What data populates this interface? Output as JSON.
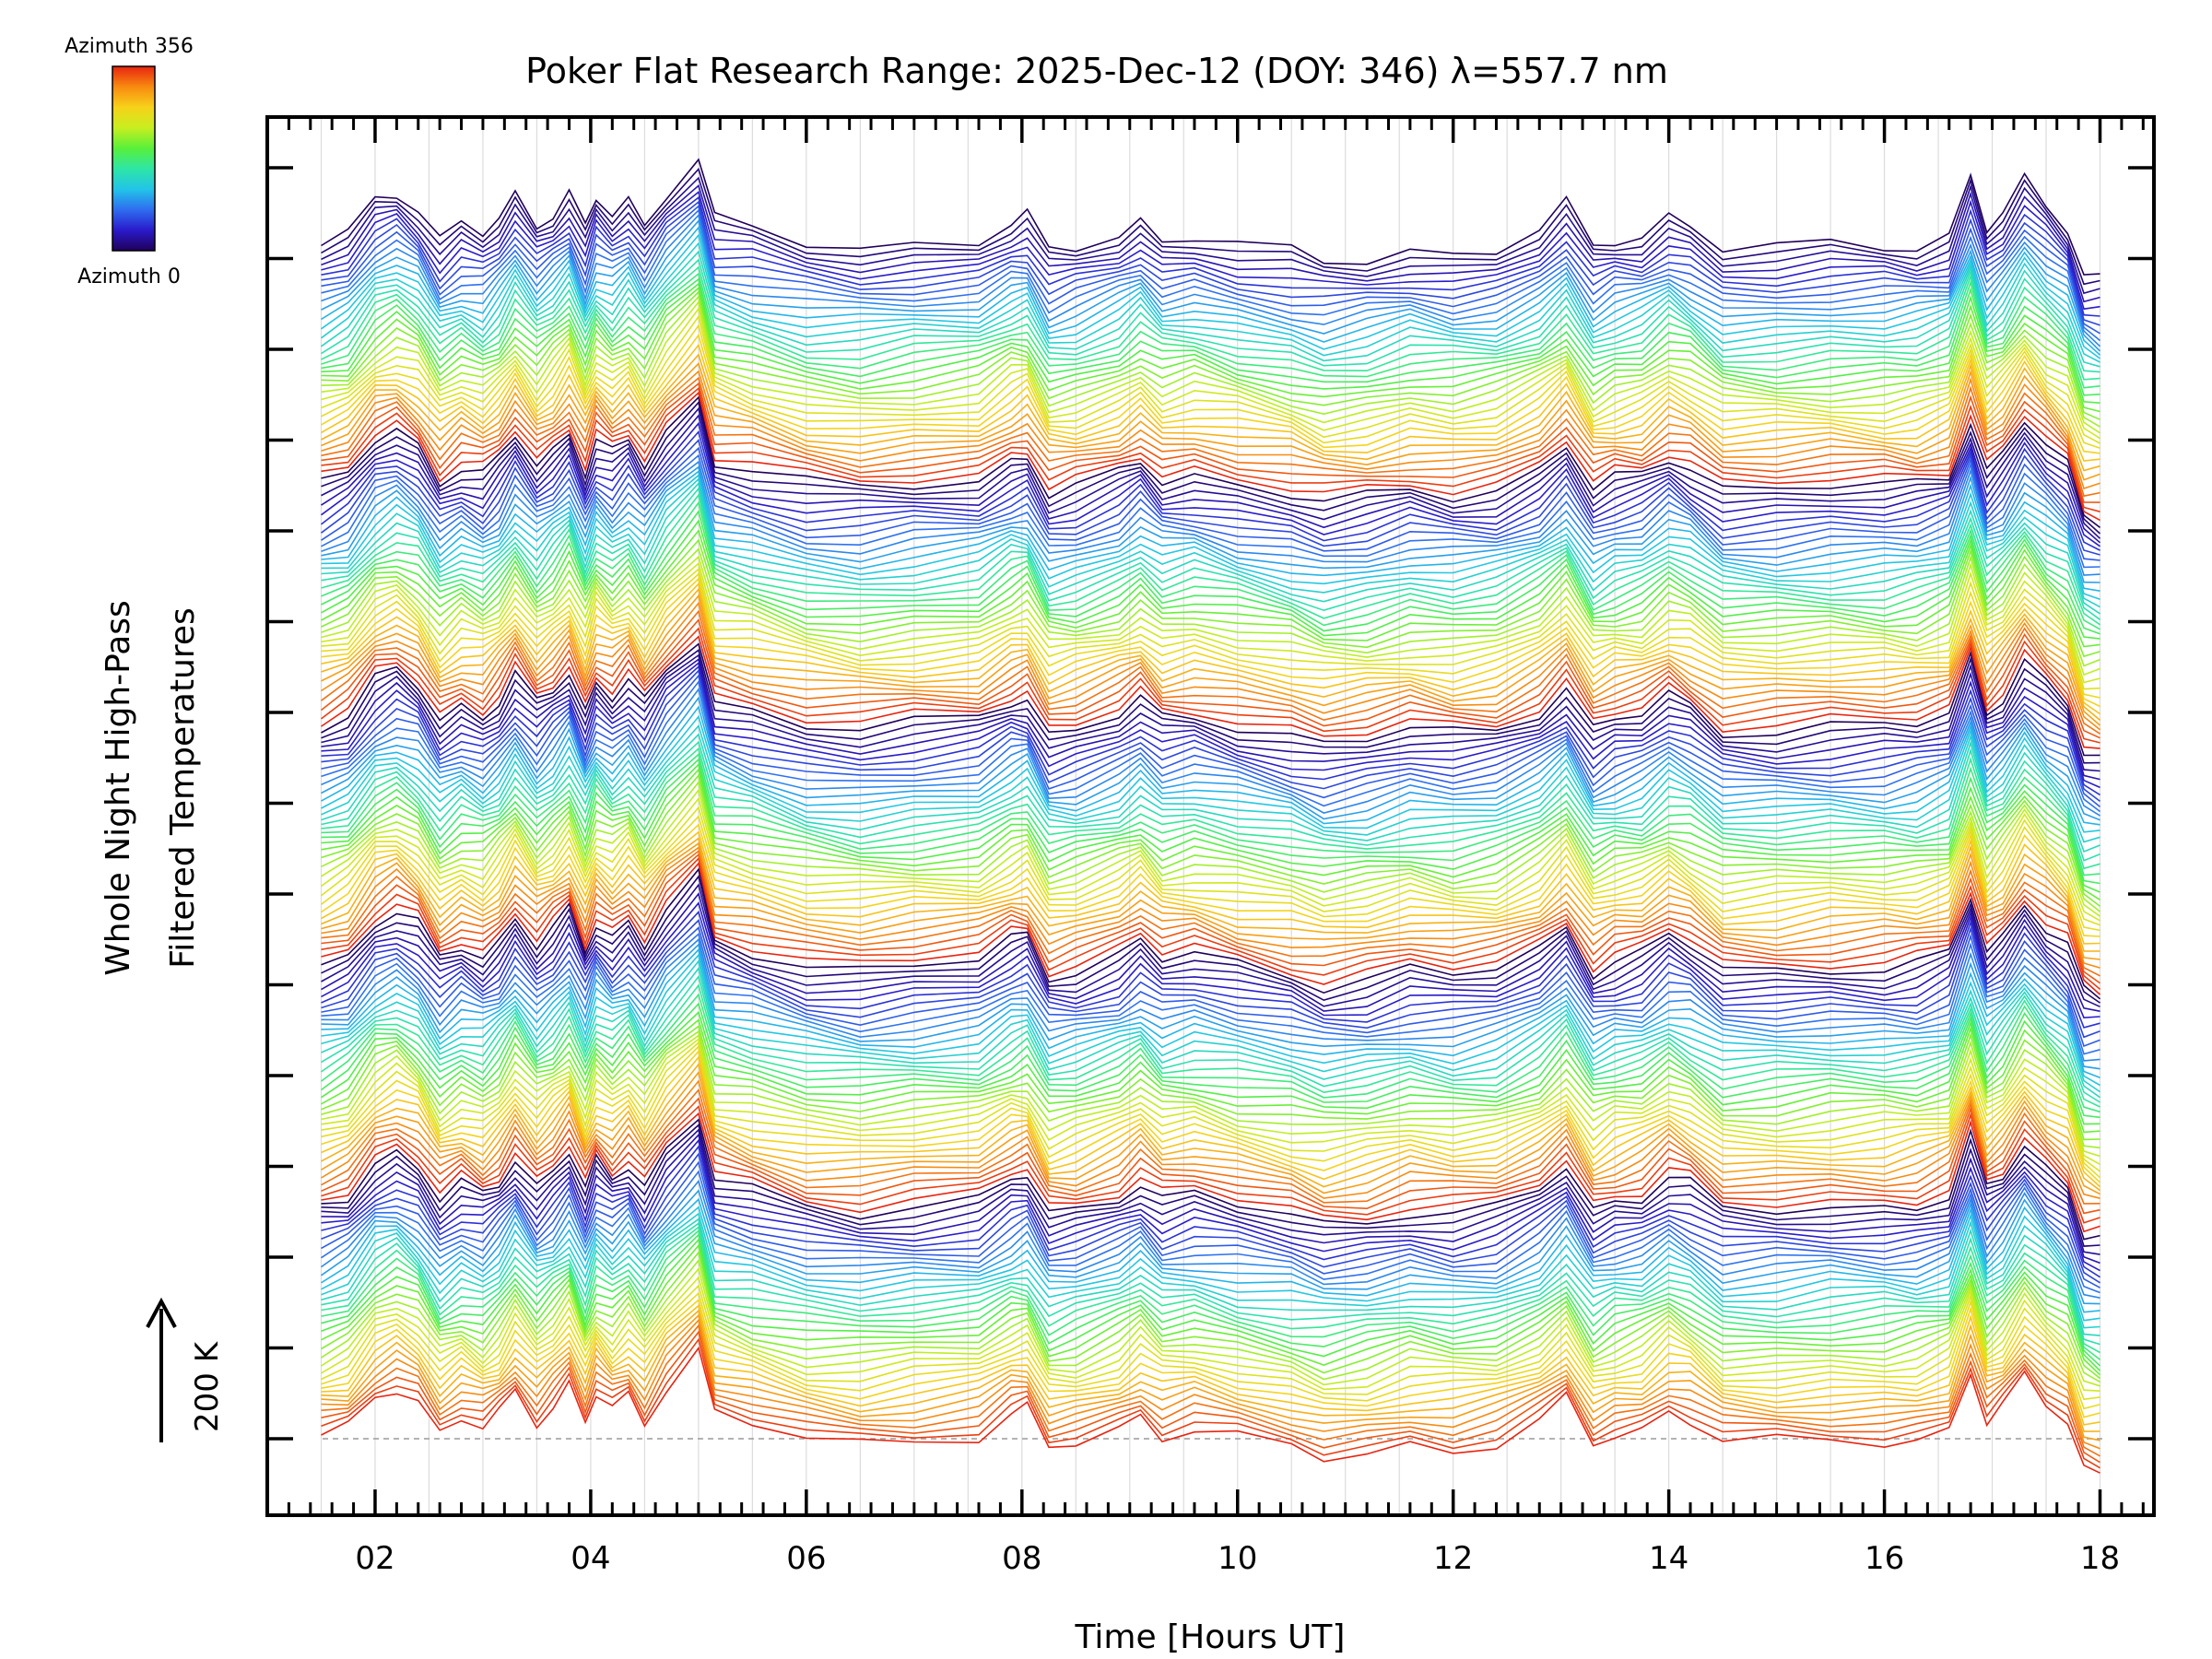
{
  "chart_data": {
    "type": "line",
    "title": "Poker Flat Research Range: 2025-Dec-12 (DOY: 346) λ=557.7 nm",
    "xlabel": "Time [Hours UT]",
    "ylabel_line1": "Whole Night High-Pass",
    "ylabel_line2": "Filtered Temperatures",
    "xlim": [
      1.0,
      18.5
    ],
    "x_ticks": [
      2,
      4,
      6,
      8,
      10,
      12,
      14,
      16,
      18
    ],
    "x_tick_labels": [
      "02",
      "04",
      "06",
      "08",
      "10",
      "12",
      "14",
      "16",
      "18"
    ],
    "y_scale_label": "200 K",
    "colorbar": {
      "top_label": "Azimuth 356",
      "bottom_label": "Azimuth 0",
      "colormap": "rainbow",
      "colors": [
        "#20005a",
        "#2a1acb",
        "#2f6df0",
        "#22c4e8",
        "#2ee6a6",
        "#58f03a",
        "#c8ee20",
        "#f7d21a",
        "#f88a10",
        "#e82410"
      ]
    },
    "series_count": 180,
    "x": [
      1.5,
      1.75,
      2.0,
      2.2,
      2.4,
      2.6,
      2.8,
      3.0,
      3.15,
      3.3,
      3.5,
      3.65,
      3.8,
      3.95,
      4.05,
      4.2,
      4.35,
      4.5,
      4.7,
      5.0,
      5.15,
      5.5,
      6.0,
      6.5,
      7.0,
      7.6,
      7.9,
      8.05,
      8.25,
      8.5,
      8.9,
      9.1,
      9.3,
      9.6,
      10.0,
      10.5,
      10.8,
      11.2,
      11.6,
      12.0,
      12.4,
      12.8,
      13.05,
      13.3,
      13.5,
      13.75,
      14.0,
      14.2,
      14.5,
      15.0,
      15.5,
      16.0,
      16.3,
      16.6,
      16.8,
      16.95,
      17.1,
      17.3,
      17.5,
      17.7,
      17.85,
      18.0
    ],
    "base_profile": [
      0,
      10,
      45,
      55,
      40,
      5,
      20,
      10,
      25,
      50,
      20,
      35,
      55,
      15,
      45,
      30,
      45,
      20,
      55,
      90,
      25,
      15,
      0,
      -5,
      0,
      5,
      25,
      30,
      -10,
      -5,
      10,
      25,
      5,
      10,
      0,
      -10,
      -20,
      -15,
      -5,
      -10,
      -5,
      15,
      40,
      -5,
      5,
      10,
      30,
      20,
      -5,
      -5,
      -2,
      -2,
      0,
      10,
      70,
      15,
      30,
      65,
      40,
      20,
      -30,
      -35
    ]
  }
}
